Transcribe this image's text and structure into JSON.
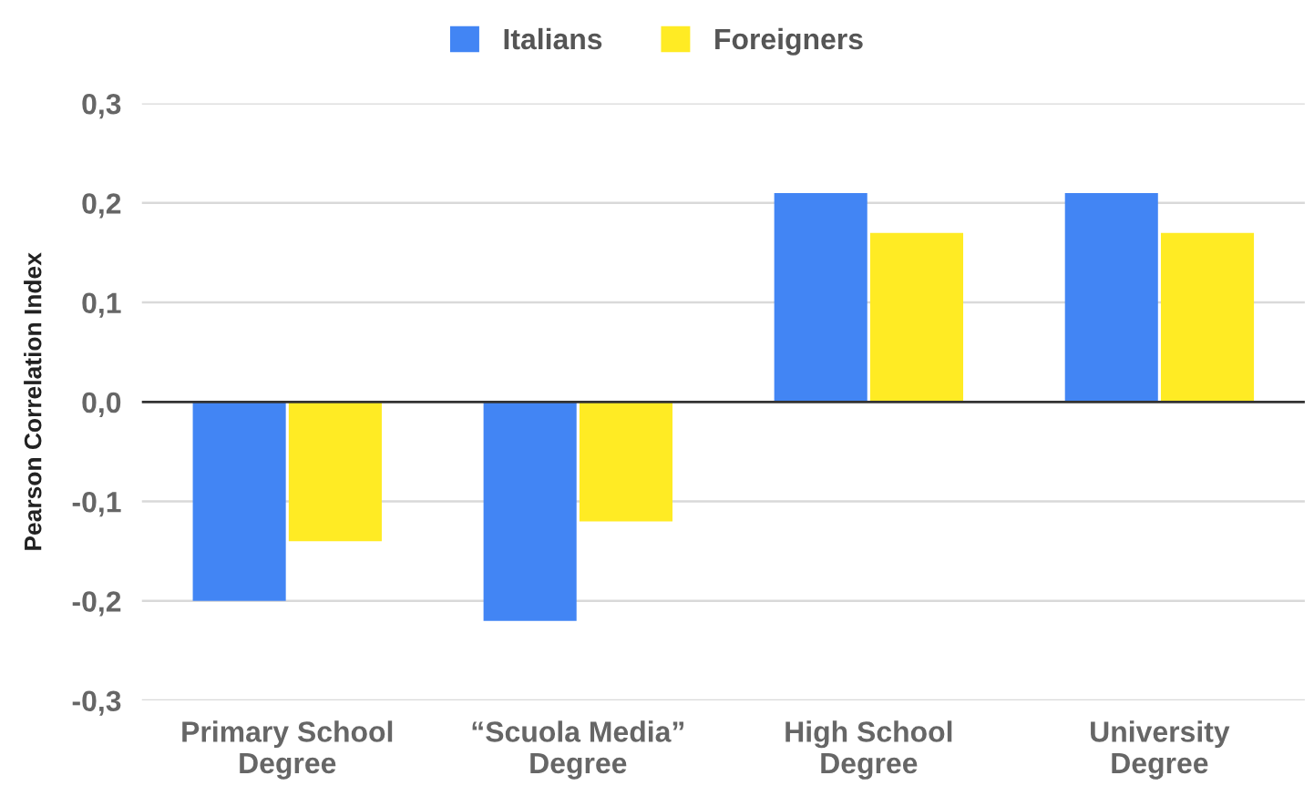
{
  "chart_data": {
    "type": "bar",
    "ylabel": "Pearson Correlation Index",
    "categories": [
      "Primary School\nDegree",
      "“Scuola Media”\nDegree",
      "High School\nDegree",
      "University\nDegree"
    ],
    "series": [
      {
        "name": "Italians",
        "color": "#4285f4",
        "values": [
          -0.2,
          -0.22,
          0.21,
          0.21
        ]
      },
      {
        "name": "Foreigners",
        "color": "#ffeb24",
        "values": [
          -0.14,
          -0.12,
          0.17,
          0.17
        ]
      }
    ],
    "ylim": [
      -0.3,
      0.3
    ],
    "yticks": [
      {
        "value": -0.3,
        "label": "-0,3"
      },
      {
        "value": -0.2,
        "label": "-0,2"
      },
      {
        "value": -0.1,
        "label": "-0,1"
      },
      {
        "value": 0,
        "label": "0,0"
      },
      {
        "value": 0.1,
        "label": "0,1"
      },
      {
        "value": 0.2,
        "label": "0,2"
      },
      {
        "value": 0.3,
        "label": "0,3"
      }
    ],
    "ref_lines": [
      {
        "axis": "y",
        "value": 0,
        "color": "#333333"
      }
    ],
    "grid": "y",
    "legend": "top"
  }
}
